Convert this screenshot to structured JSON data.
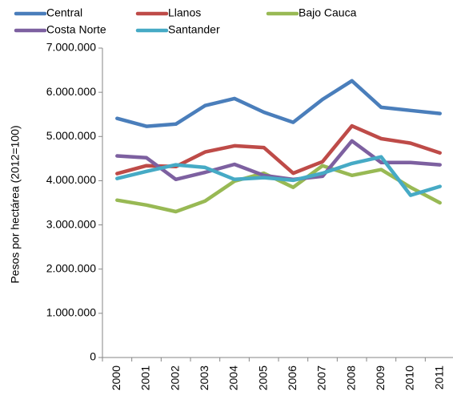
{
  "chart_data": {
    "type": "line",
    "y_label": "Pesos por hectárea (2012=100)",
    "categories": [
      "2000",
      "2001",
      "2002",
      "2003",
      "2004",
      "2005",
      "2006",
      "2007",
      "2008",
      "2009",
      "2010",
      "2011"
    ],
    "series": [
      {
        "name": "Central",
        "color": "#4a7ebb",
        "values": [
          5410000,
          5230000,
          5280000,
          5700000,
          5860000,
          5550000,
          5320000,
          5840000,
          6260000,
          5660000,
          5590000,
          5520000
        ]
      },
      {
        "name": "Llanos",
        "color": "#be4b48",
        "values": [
          4160000,
          4340000,
          4320000,
          4650000,
          4790000,
          4750000,
          4170000,
          4430000,
          5240000,
          4950000,
          4850000,
          4630000
        ]
      },
      {
        "name": "Bajo Cauca",
        "color": "#98b954",
        "values": [
          3560000,
          3450000,
          3300000,
          3540000,
          3990000,
          4170000,
          3850000,
          4340000,
          4120000,
          4250000,
          3850000,
          3500000
        ]
      },
      {
        "name": "Costa Norte",
        "color": "#7d60a0",
        "values": [
          4560000,
          4520000,
          4030000,
          4190000,
          4370000,
          4120000,
          4030000,
          4100000,
          4900000,
          4410000,
          4410000,
          4360000
        ]
      },
      {
        "name": "Santander",
        "color": "#46aac5",
        "values": [
          4050000,
          4210000,
          4360000,
          4300000,
          4030000,
          4070000,
          4010000,
          4170000,
          4390000,
          4540000,
          3670000,
          3870000
        ]
      }
    ],
    "ylim": [
      0,
      7000000
    ],
    "yticks": [
      0,
      {
        "value": 1000000,
        "label": "1.000.000"
      },
      {
        "value": 2000000,
        "label": "2.000.000"
      },
      {
        "value": 3000000,
        "label": "3.000.000"
      },
      {
        "value": 4000000,
        "label": "4.000.000"
      },
      {
        "value": 5000000,
        "label": "5.000.000"
      },
      {
        "value": 6000000,
        "label": "6.000.000"
      },
      {
        "value": 7000000,
        "label": "7.000.000"
      }
    ],
    "grid": false,
    "legend": "top"
  }
}
